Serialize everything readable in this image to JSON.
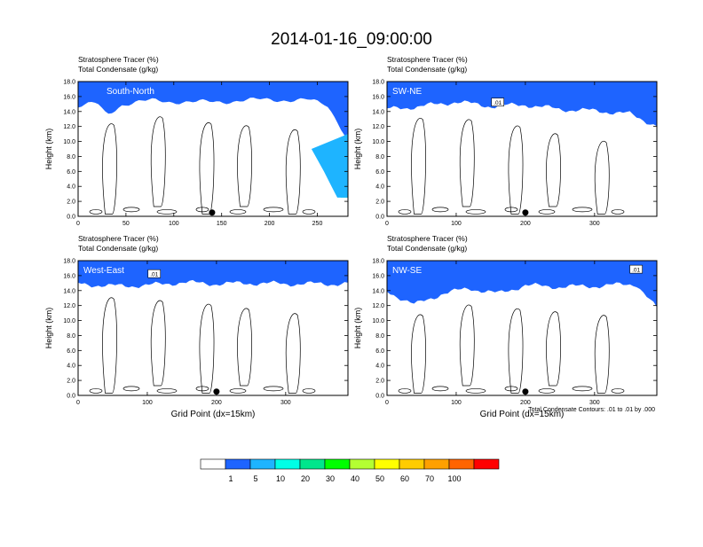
{
  "figure": {
    "title": "2014-01-16_09:00:00",
    "contour_note": "Total Condensate Contours: .01 to .01 by .000"
  },
  "colorbar": {
    "colors": [
      "#ffffff",
      "#1e64ff",
      "#1eb4ff",
      "#00ffe6",
      "#00e68c",
      "#00ff00",
      "#b4ff32",
      "#ffff00",
      "#ffcc00",
      "#ffa000",
      "#ff6400",
      "#ff0000"
    ],
    "labels": [
      "1",
      "5",
      "10",
      "20",
      "30",
      "40",
      "50",
      "60",
      "70",
      "100"
    ],
    "boundaries": [
      1,
      5,
      10,
      20,
      30,
      40,
      50,
      60,
      70,
      100
    ]
  },
  "chart_data": [
    {
      "type": "heatmap",
      "panel_label": "South-North",
      "title_line1": "Stratosphere Tracer   (%)",
      "title_line2": "Total Condensate   (g/kg)",
      "xlabel": "",
      "ylabel": "Height (km)",
      "xlim": [
        0,
        282
      ],
      "ylim": [
        0,
        18
      ],
      "xticks": [
        0,
        50,
        100,
        150,
        200,
        250
      ],
      "yticks": [
        "0.0",
        "2.0",
        "4.0",
        "6.0",
        "8.0",
        "10.0",
        "12.0",
        "14.0",
        "16.0",
        "18.0"
      ],
      "marker_x": 140,
      "contour_label": "",
      "tropopause_height": [
        [
          0,
          15.5
        ],
        [
          20,
          16
        ],
        [
          30,
          14.5
        ],
        [
          45,
          15.8
        ],
        [
          80,
          16.4
        ],
        [
          120,
          16.1
        ],
        [
          160,
          16.3
        ],
        [
          200,
          16.5
        ],
        [
          240,
          16.4
        ],
        [
          260,
          15.8
        ],
        [
          272,
          13.5
        ],
        [
          282,
          11
        ]
      ],
      "tracer_intrusion": [
        [
          255,
          9
        ],
        [
          268,
          6
        ],
        [
          276,
          4
        ],
        [
          282,
          2.5
        ]
      ]
    },
    {
      "type": "heatmap",
      "panel_label": "SW-NE",
      "title_line1": "Stratosphere Tracer   (%)",
      "title_line2": "Total Condensate   (g/kg)",
      "xlabel": "",
      "ylabel": "Height (km)",
      "xlim": [
        0,
        390
      ],
      "ylim": [
        0,
        18
      ],
      "xticks": [
        0,
        100,
        200,
        300
      ],
      "yticks": [
        "0.0",
        "2.0",
        "4.0",
        "6.0",
        "8.0",
        "10.0",
        "12.0",
        "14.0",
        "16.0",
        "18.0"
      ],
      "marker_x": 200,
      "contour_label": ".01",
      "tropopause_height": [
        [
          0,
          15.2
        ],
        [
          50,
          15.6
        ],
        [
          100,
          16.2
        ],
        [
          150,
          15.6
        ],
        [
          200,
          15.8
        ],
        [
          250,
          15.2
        ],
        [
          300,
          15.0
        ],
        [
          350,
          14.6
        ],
        [
          390,
          13.0
        ]
      ],
      "tracer_intrusion": []
    },
    {
      "type": "heatmap",
      "panel_label": "West-East",
      "title_line1": "Stratosphere Tracer   (%)",
      "title_line2": "Total Condensate   (g/kg)",
      "xlabel": "Grid Point (dx=15km)",
      "ylabel": "Height (km)",
      "xlim": [
        0,
        390
      ],
      "ylim": [
        0,
        18
      ],
      "xticks": [
        0,
        100,
        200,
        300
      ],
      "yticks": [
        "0.0",
        "2.0",
        "4.0",
        "6.0",
        "8.0",
        "10.0",
        "12.0",
        "14.0",
        "16.0",
        "18.0"
      ],
      "marker_x": 200,
      "contour_label": ".01",
      "tropopause_height": [
        [
          0,
          15.8
        ],
        [
          50,
          15.5
        ],
        [
          100,
          15.6
        ],
        [
          150,
          16.0
        ],
        [
          200,
          15.8
        ],
        [
          250,
          15.9
        ],
        [
          300,
          15.8
        ],
        [
          390,
          15.8
        ]
      ],
      "tracer_intrusion": []
    },
    {
      "type": "heatmap",
      "panel_label": "NW-SE",
      "title_line1": "Stratosphere Tracer   (%)",
      "title_line2": "Total Condensate   (g/kg)",
      "xlabel": "Grid Point (dx=15km)",
      "ylabel": "Height (km)",
      "xlim": [
        0,
        390
      ],
      "ylim": [
        0,
        18
      ],
      "xticks": [
        0,
        100,
        200,
        300
      ],
      "yticks": [
        "0.0",
        "2.0",
        "4.0",
        "6.0",
        "8.0",
        "10.0",
        "12.0",
        "14.0",
        "16.0",
        "18.0"
      ],
      "marker_x": 200,
      "contour_label": ".01",
      "tropopause_height": [
        [
          0,
          14.8
        ],
        [
          40,
          13.0
        ],
        [
          80,
          14.5
        ],
        [
          120,
          15.2
        ],
        [
          160,
          14.5
        ],
        [
          200,
          15.6
        ],
        [
          250,
          15.4
        ],
        [
          300,
          15.5
        ],
        [
          360,
          15.8
        ],
        [
          390,
          12.5
        ]
      ],
      "tracer_intrusion": []
    }
  ]
}
